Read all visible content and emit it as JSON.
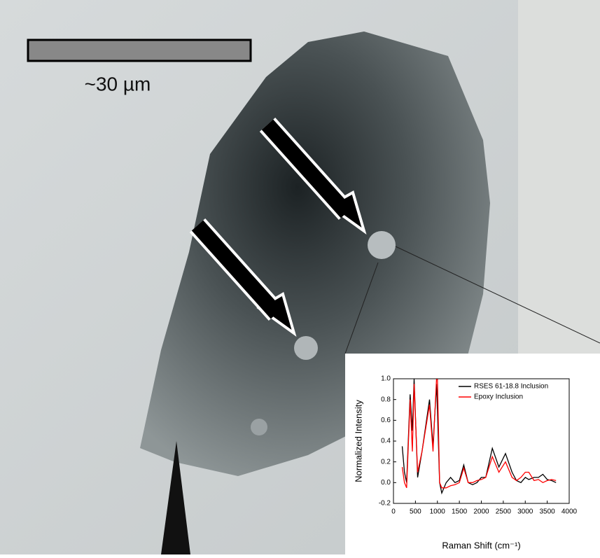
{
  "scale_bar": {
    "label": "~30 µm"
  },
  "chart_data": {
    "type": "line",
    "xlabel": "Raman Shift (cm⁻¹)",
    "ylabel": "Normalized Intensity",
    "x": [
      200,
      250,
      300,
      380,
      430,
      470,
      550,
      650,
      820,
      900,
      980,
      1000,
      1050,
      1100,
      1200,
      1300,
      1400,
      1500,
      1600,
      1700,
      1800,
      1900,
      2000,
      2100,
      2250,
      2400,
      2550,
      2700,
      2800,
      2900,
      3000,
      3080,
      3200,
      3300,
      3400,
      3500,
      3600,
      3700
    ],
    "series": [
      {
        "name": "RSES 61-18.8 Inclusion",
        "color": "#000000",
        "values": [
          0.35,
          0.1,
          0.0,
          0.85,
          0.5,
          1.0,
          0.05,
          0.3,
          0.8,
          0.35,
          0.95,
          0.7,
          0.0,
          -0.1,
          0.0,
          0.05,
          0.0,
          0.02,
          0.17,
          0.0,
          -0.02,
          0.0,
          0.05,
          0.05,
          0.33,
          0.15,
          0.28,
          0.1,
          0.02,
          0.0,
          0.05,
          0.03,
          0.05,
          0.05,
          0.08,
          0.03,
          0.02,
          0.0
        ]
      },
      {
        "name": "Epoxy Inclusion",
        "color": "#ff0000",
        "values": [
          0.15,
          0.0,
          -0.05,
          0.8,
          0.3,
          0.95,
          0.1,
          0.3,
          0.75,
          0.3,
          1.0,
          1.0,
          0.0,
          -0.05,
          -0.05,
          -0.03,
          -0.02,
          0.0,
          0.14,
          0.0,
          0.0,
          0.02,
          0.03,
          0.05,
          0.25,
          0.1,
          0.2,
          0.05,
          0.02,
          0.05,
          0.1,
          0.1,
          0.02,
          0.03,
          0.0,
          0.02,
          0.03,
          0.02
        ]
      }
    ],
    "xlim": [
      0,
      4000
    ],
    "ylim": [
      -0.2,
      1.0
    ],
    "xticks": [
      0,
      500,
      1000,
      1500,
      2000,
      2500,
      3000,
      3500,
      4000
    ],
    "yticks": [
      -0.2,
      {
        "value": 0,
        "label": "0.0"
      },
      0.2,
      0.4,
      0.6,
      0.8,
      {
        "value": 1,
        "label": "1.0"
      }
    ],
    "legend": "upper-right"
  }
}
